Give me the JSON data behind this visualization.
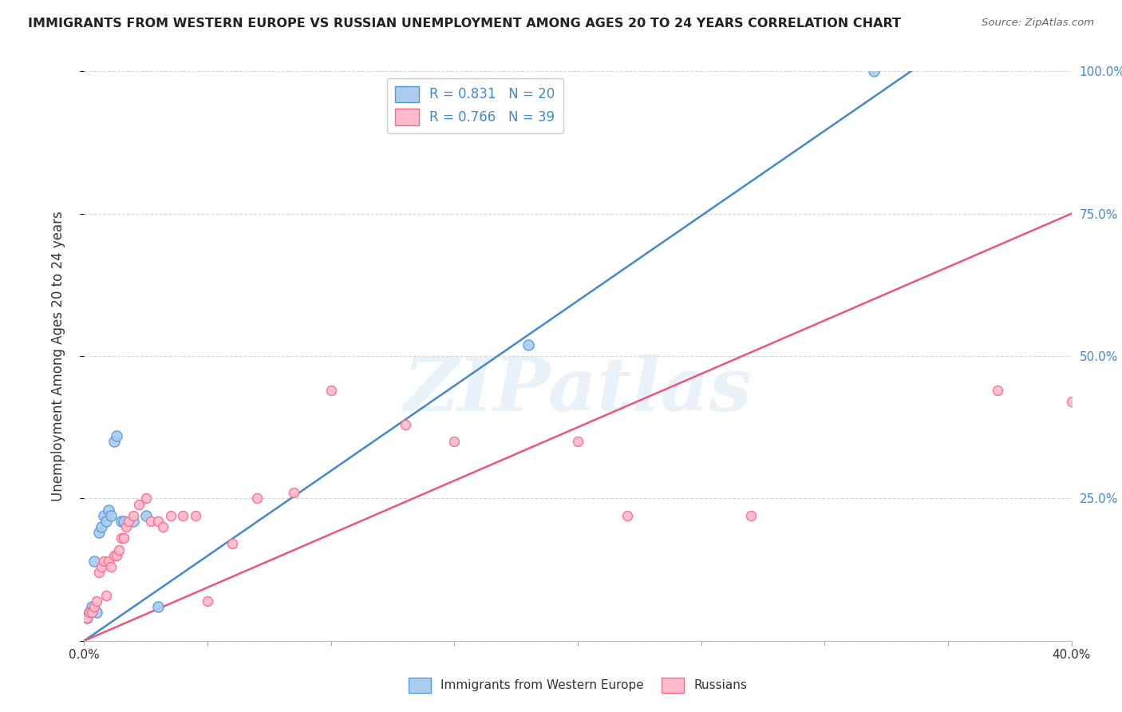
{
  "title": "IMMIGRANTS FROM WESTERN EUROPE VS RUSSIAN UNEMPLOYMENT AMONG AGES 20 TO 24 YEARS CORRELATION CHART",
  "source": "Source: ZipAtlas.com",
  "ylabel": "Unemployment Among Ages 20 to 24 years",
  "x_ticks": [
    0.0,
    0.05,
    0.1,
    0.15,
    0.2,
    0.25,
    0.3,
    0.35,
    0.4
  ],
  "y_ticks": [
    0.0,
    0.25,
    0.5,
    0.75,
    1.0
  ],
  "y_tick_labels_right": [
    "",
    "25.0%",
    "50.0%",
    "75.0%",
    "100.0%"
  ],
  "xlim": [
    0.0,
    0.4
  ],
  "ylim": [
    0.0,
    1.0
  ],
  "background_color": "#ffffff",
  "grid_color": "#cccccc",
  "watermark_text": "ZIPatlas",
  "blue_series_label": "R = 0.831   N = 20",
  "pink_series_label": "R = 0.766   N = 39",
  "legend_label1": "Immigrants from Western Europe",
  "legend_label2": "Russians",
  "blue_line_color": "#4488cc",
  "pink_line_color": "#ee5577",
  "blue_fill_color": "#aaccee",
  "pink_fill_color": "#ffbbcc",
  "blue_edge_color": "#5599dd",
  "pink_edge_color": "#ff6688",
  "blue_points_x": [
    0.001,
    0.002,
    0.003,
    0.004,
    0.005,
    0.006,
    0.007,
    0.008,
    0.009,
    0.01,
    0.011,
    0.012,
    0.013,
    0.015,
    0.016,
    0.02,
    0.025,
    0.03,
    0.18,
    0.32
  ],
  "blue_points_y": [
    0.04,
    0.05,
    0.06,
    0.14,
    0.05,
    0.19,
    0.2,
    0.22,
    0.21,
    0.23,
    0.22,
    0.35,
    0.36,
    0.21,
    0.21,
    0.21,
    0.22,
    0.06,
    0.52,
    1.0
  ],
  "pink_points_x": [
    0.001,
    0.002,
    0.003,
    0.004,
    0.005,
    0.006,
    0.007,
    0.008,
    0.009,
    0.01,
    0.011,
    0.012,
    0.013,
    0.014,
    0.015,
    0.016,
    0.017,
    0.018,
    0.02,
    0.022,
    0.025,
    0.027,
    0.03,
    0.032,
    0.035,
    0.04,
    0.045,
    0.05,
    0.06,
    0.07,
    0.085,
    0.1,
    0.13,
    0.15,
    0.2,
    0.22,
    0.27,
    0.37,
    0.4
  ],
  "pink_points_y": [
    0.04,
    0.05,
    0.05,
    0.06,
    0.07,
    0.12,
    0.13,
    0.14,
    0.08,
    0.14,
    0.13,
    0.15,
    0.15,
    0.16,
    0.18,
    0.18,
    0.2,
    0.21,
    0.22,
    0.24,
    0.25,
    0.21,
    0.21,
    0.2,
    0.22,
    0.22,
    0.22,
    0.07,
    0.17,
    0.25,
    0.26,
    0.44,
    0.38,
    0.35,
    0.35,
    0.22,
    0.22,
    0.44,
    0.42
  ],
  "blue_line_x": [
    0.0,
    0.335
  ],
  "blue_line_y": [
    0.0,
    1.0
  ],
  "pink_line_x": [
    0.0,
    0.4
  ],
  "pink_line_y": [
    0.0,
    0.75
  ]
}
